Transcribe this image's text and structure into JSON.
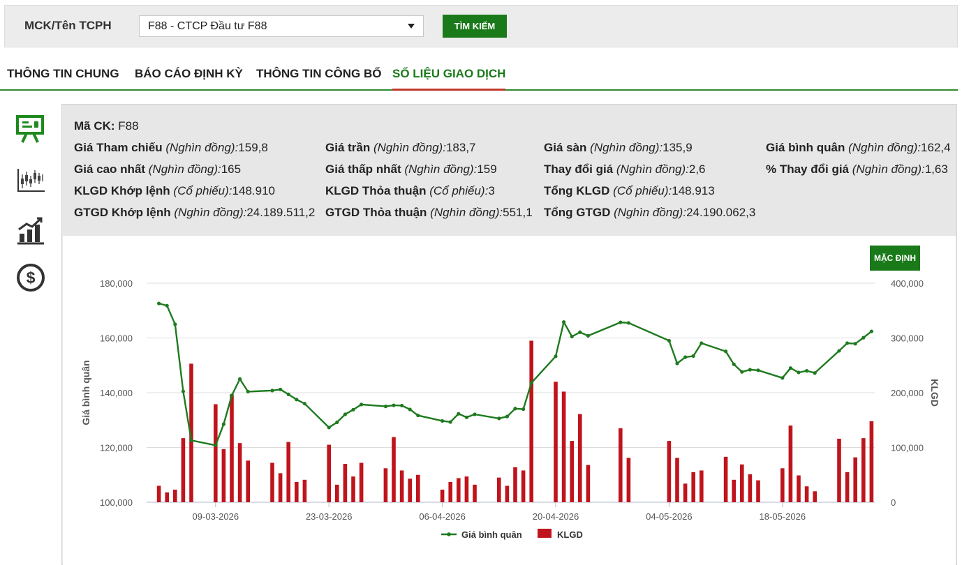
{
  "search": {
    "label": "MCK/Tên TCPH",
    "selected": "F88 - CTCP Đầu tư F88",
    "button": "TÌM KIẾM"
  },
  "tabs": [
    {
      "label": "THÔNG TIN CHUNG"
    },
    {
      "label": "BÁO CÁO ĐỊNH KỲ"
    },
    {
      "label": "THÔNG TIN CÔNG BỐ"
    },
    {
      "label": "SỐ LIỆU GIAO DỊCH",
      "active": true
    }
  ],
  "side_icons": [
    "presentation-icon",
    "candlestick-chart-icon",
    "bar-growth-chart-icon",
    "dollar-coin-icon"
  ],
  "stock": {
    "code_label": "Mã CK:",
    "code": "F88",
    "unit_money": "(Nghìn đồng):",
    "unit_shares": "(Cổ phiếu):",
    "ref_label": "Giá Tham chiếu",
    "ref": "159,8",
    "ceil_label": "Giá trần",
    "ceil": "183,7",
    "floor_label": "Giá sàn",
    "floor": "135,9",
    "avg_label": "Giá bình quân",
    "avg": "162,4",
    "high_label": "Giá cao nhất",
    "high": "165",
    "low_label": "Giá thấp nhất",
    "low": "159",
    "chg_label": "Thay đổi giá",
    "chg": "2,6",
    "pct_label": "% Thay đổi giá",
    "pct": "1,63",
    "vol_match_label": "KLGD Khớp lệnh",
    "vol_match": "148.910",
    "vol_deal_label": "KLGD Thỏa thuận",
    "vol_deal": "3",
    "vol_total_label": "Tổng KLGD",
    "vol_total": "148.913",
    "val_match_label": "GTGD Khớp lệnh",
    "val_match": "24.189.511,2",
    "val_deal_label": "GTGD Thỏa thuận",
    "val_deal": "551,1",
    "val_total_label": "Tổng GTGD",
    "val_total": "24.190.062,3"
  },
  "chart_controls": {
    "default_button": "MẶC ĐỊNH"
  },
  "colors": {
    "accent": "#1a7a1a",
    "line": "#1e7a1e",
    "bar": "#c0141c",
    "tab_underline": "#c0392b"
  },
  "chart_data": {
    "type": "bar+line",
    "ylabel": "Giá bình quân",
    "y2label": "KLGD",
    "ylim": [
      100000,
      180000
    ],
    "y2lim": [
      0,
      400000
    ],
    "y_ticks": [
      "100,000",
      "120,000",
      "140,000",
      "160,000",
      "180,000"
    ],
    "y2_ticks": [
      "0",
      "100,000",
      "200,000",
      "300,000",
      "400,000"
    ],
    "x_ticks": [
      {
        "label": "09-03-2026",
        "day": 8
      },
      {
        "label": "23-03-2026",
        "day": 22
      },
      {
        "label": "06-04-2026",
        "day": 36
      },
      {
        "label": "20-04-2026",
        "day": 50
      },
      {
        "label": "04-05-2026",
        "day": 64
      },
      {
        "label": "18-05-2026",
        "day": 78
      }
    ],
    "legend": [
      {
        "name": "Giá bình quân",
        "kind": "line"
      },
      {
        "name": "KLGD",
        "kind": "bar"
      }
    ],
    "legend_position": "bottom",
    "series": [
      {
        "name": "Giá bình quân",
        "kind": "line",
        "points": [
          {
            "date": "2026-03-02",
            "value": 172600
          },
          {
            "date": "2026-03-03",
            "value": 171800
          },
          {
            "date": "2026-03-04",
            "value": 165000
          },
          {
            "date": "2026-03-05",
            "value": 140500
          },
          {
            "date": "2026-03-06",
            "value": 122600
          },
          {
            "date": "2026-03-09",
            "value": 120800
          },
          {
            "date": "2026-03-10",
            "value": 128500
          },
          {
            "date": "2026-03-11",
            "value": 139000
          },
          {
            "date": "2026-03-12",
            "value": 145000
          },
          {
            "date": "2026-03-13",
            "value": 140400
          },
          {
            "date": "2026-03-16",
            "value": 140800
          },
          {
            "date": "2026-03-17",
            "value": 141200
          },
          {
            "date": "2026-03-18",
            "value": 139400
          },
          {
            "date": "2026-03-19",
            "value": 137500
          },
          {
            "date": "2026-03-20",
            "value": 136000
          },
          {
            "date": "2026-03-23",
            "value": 127300
          },
          {
            "date": "2026-03-24",
            "value": 129200
          },
          {
            "date": "2026-03-25",
            "value": 132100
          },
          {
            "date": "2026-03-26",
            "value": 133800
          },
          {
            "date": "2026-03-27",
            "value": 135700
          },
          {
            "date": "2026-03-30",
            "value": 135000
          },
          {
            "date": "2026-03-31",
            "value": 135400
          },
          {
            "date": "2026-04-01",
            "value": 135300
          },
          {
            "date": "2026-04-02",
            "value": 133900
          },
          {
            "date": "2026-04-03",
            "value": 131700
          },
          {
            "date": "2026-04-06",
            "value": 129700
          },
          {
            "date": "2026-04-07",
            "value": 129300
          },
          {
            "date": "2026-04-08",
            "value": 132300
          },
          {
            "date": "2026-04-09",
            "value": 131000
          },
          {
            "date": "2026-04-10",
            "value": 132100
          },
          {
            "date": "2026-04-13",
            "value": 130600
          },
          {
            "date": "2026-04-14",
            "value": 131300
          },
          {
            "date": "2026-04-15",
            "value": 134200
          },
          {
            "date": "2026-04-16",
            "value": 134000
          },
          {
            "date": "2026-04-17",
            "value": 143600
          },
          {
            "date": "2026-04-20",
            "value": 153300
          },
          {
            "date": "2026-04-21",
            "value": 165800
          },
          {
            "date": "2026-04-22",
            "value": 160500
          },
          {
            "date": "2026-04-23",
            "value": 162100
          },
          {
            "date": "2026-04-24",
            "value": 160800
          },
          {
            "date": "2026-04-28",
            "value": 165700
          },
          {
            "date": "2026-04-29",
            "value": 165500
          },
          {
            "date": "2026-05-04",
            "value": 159000
          },
          {
            "date": "2026-05-05",
            "value": 150700
          },
          {
            "date": "2026-05-06",
            "value": 153000
          },
          {
            "date": "2026-05-07",
            "value": 153400
          },
          {
            "date": "2026-05-08",
            "value": 158100
          },
          {
            "date": "2026-05-11",
            "value": 155100
          },
          {
            "date": "2026-05-12",
            "value": 150400
          },
          {
            "date": "2026-05-13",
            "value": 147600
          },
          {
            "date": "2026-05-14",
            "value": 148400
          },
          {
            "date": "2026-05-15",
            "value": 148200
          },
          {
            "date": "2026-05-18",
            "value": 145400
          },
          {
            "date": "2026-05-19",
            "value": 149000
          },
          {
            "date": "2026-05-20",
            "value": 147400
          },
          {
            "date": "2026-05-21",
            "value": 148000
          },
          {
            "date": "2026-05-22",
            "value": 147200
          },
          {
            "date": "2026-05-25",
            "value": 155300
          },
          {
            "date": "2026-05-26",
            "value": 158100
          },
          {
            "date": "2026-05-27",
            "value": 157900
          },
          {
            "date": "2026-05-28",
            "value": 160100
          },
          {
            "date": "2026-05-29",
            "value": 162400
          }
        ]
      },
      {
        "name": "KLGD",
        "kind": "bar",
        "points": [
          {
            "date": "2026-03-02",
            "value": 30000
          },
          {
            "date": "2026-03-03",
            "value": 18000
          },
          {
            "date": "2026-03-04",
            "value": 23000
          },
          {
            "date": "2026-03-05",
            "value": 117000
          },
          {
            "date": "2026-03-06",
            "value": 253000
          },
          {
            "date": "2026-03-09",
            "value": 179000
          },
          {
            "date": "2026-03-10",
            "value": 97000
          },
          {
            "date": "2026-03-11",
            "value": 197000
          },
          {
            "date": "2026-03-12",
            "value": 108000
          },
          {
            "date": "2026-03-13",
            "value": 76000
          },
          {
            "date": "2026-03-16",
            "value": 72000
          },
          {
            "date": "2026-03-17",
            "value": 53000
          },
          {
            "date": "2026-03-18",
            "value": 110000
          },
          {
            "date": "2026-03-19",
            "value": 37000
          },
          {
            "date": "2026-03-20",
            "value": 41000
          },
          {
            "date": "2026-03-23",
            "value": 105000
          },
          {
            "date": "2026-03-24",
            "value": 32000
          },
          {
            "date": "2026-03-25",
            "value": 70000
          },
          {
            "date": "2026-03-26",
            "value": 47000
          },
          {
            "date": "2026-03-27",
            "value": 72000
          },
          {
            "date": "2026-03-30",
            "value": 62000
          },
          {
            "date": "2026-03-31",
            "value": 119000
          },
          {
            "date": "2026-04-01",
            "value": 58000
          },
          {
            "date": "2026-04-02",
            "value": 43000
          },
          {
            "date": "2026-04-03",
            "value": 50000
          },
          {
            "date": "2026-04-06",
            "value": 23000
          },
          {
            "date": "2026-04-07",
            "value": 37000
          },
          {
            "date": "2026-04-08",
            "value": 44000
          },
          {
            "date": "2026-04-09",
            "value": 47000
          },
          {
            "date": "2026-04-10",
            "value": 32000
          },
          {
            "date": "2026-04-13",
            "value": 45000
          },
          {
            "date": "2026-04-14",
            "value": 30000
          },
          {
            "date": "2026-04-15",
            "value": 64000
          },
          {
            "date": "2026-04-16",
            "value": 58000
          },
          {
            "date": "2026-04-17",
            "value": 295000
          },
          {
            "date": "2026-04-20",
            "value": 220000
          },
          {
            "date": "2026-04-21",
            "value": 202000
          },
          {
            "date": "2026-04-22",
            "value": 112000
          },
          {
            "date": "2026-04-23",
            "value": 161000
          },
          {
            "date": "2026-04-24",
            "value": 68000
          },
          {
            "date": "2026-04-28",
            "value": 135000
          },
          {
            "date": "2026-04-29",
            "value": 81000
          },
          {
            "date": "2026-05-04",
            "value": 112000
          },
          {
            "date": "2026-05-05",
            "value": 81000
          },
          {
            "date": "2026-05-06",
            "value": 34000
          },
          {
            "date": "2026-05-07",
            "value": 55000
          },
          {
            "date": "2026-05-08",
            "value": 58000
          },
          {
            "date": "2026-05-11",
            "value": 83000
          },
          {
            "date": "2026-05-12",
            "value": 41000
          },
          {
            "date": "2026-05-13",
            "value": 69000
          },
          {
            "date": "2026-05-14",
            "value": 51000
          },
          {
            "date": "2026-05-15",
            "value": 40000
          },
          {
            "date": "2026-05-18",
            "value": 62000
          },
          {
            "date": "2026-05-19",
            "value": 140000
          },
          {
            "date": "2026-05-20",
            "value": 49000
          },
          {
            "date": "2026-05-21",
            "value": 29000
          },
          {
            "date": "2026-05-22",
            "value": 20000
          },
          {
            "date": "2026-05-25",
            "value": 116000
          },
          {
            "date": "2026-05-26",
            "value": 55000
          },
          {
            "date": "2026-05-27",
            "value": 82000
          },
          {
            "date": "2026-05-28",
            "value": 117000
          },
          {
            "date": "2026-05-29",
            "value": 148000
          }
        ]
      }
    ]
  }
}
